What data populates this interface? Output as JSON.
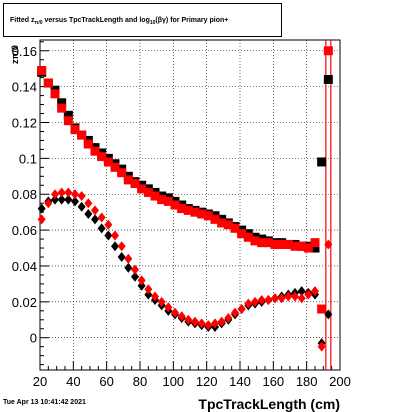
{
  "title": {
    "pre": "Fitted  z",
    "sub1": "π/0",
    "mid": " versus TpcTrackLength and log",
    "sub2": "10",
    "post": "(βγ) for Primary pion+"
  },
  "footer_timestamp": "Tue Apr 13 10:41:42 2021",
  "chart_data": {
    "type": "scatter",
    "xlabel": "TpcTrackLength (cm)",
    "ylabel": "zπ/0",
    "xlim": [
      20,
      200
    ],
    "ylim": [
      -0.018,
      0.166
    ],
    "x_ticks": [
      20,
      40,
      60,
      80,
      100,
      120,
      140,
      160,
      180,
      200
    ],
    "x_tick_labels": [
      "20",
      "40",
      "60",
      "80",
      "100",
      "120",
      "140",
      "160",
      "180",
      "200"
    ],
    "y_ticks": [
      0,
      0.02,
      0.04,
      0.06,
      0.08,
      0.1,
      0.12,
      0.14,
      0.16
    ],
    "y_tick_labels": [
      "0",
      "0.02",
      "0.04",
      "0.06",
      "0.08",
      "0.1",
      "0.12",
      "0.14",
      "0.16"
    ],
    "grid": true,
    "colors": {
      "black": "#000000",
      "red": "#ff0000"
    },
    "vertical_lines_x": [
      191.5,
      194.5
    ],
    "series": [
      {
        "marker": "square",
        "color": "#000000",
        "x": [
          21,
          25,
          29,
          33,
          37,
          41,
          45,
          49,
          53,
          57,
          61,
          65,
          69,
          73,
          77,
          81,
          85,
          89,
          93,
          97,
          101,
          105,
          109,
          113,
          117,
          121,
          125,
          129,
          133,
          137,
          141,
          145,
          149,
          153,
          157,
          161,
          165,
          169,
          173,
          177,
          181,
          185,
          189,
          193
        ],
        "y": [
          0.148,
          0.142,
          0.138,
          0.131,
          0.124,
          0.117,
          0.113,
          0.11,
          0.106,
          0.103,
          0.1,
          0.097,
          0.094,
          0.09,
          0.087,
          0.085,
          0.083,
          0.081,
          0.079,
          0.078,
          0.076,
          0.074,
          0.072,
          0.071,
          0.07,
          0.069,
          0.068,
          0.066,
          0.064,
          0.062,
          0.06,
          0.058,
          0.056,
          0.055,
          0.054,
          0.053,
          0.053,
          0.052,
          0.052,
          0.051,
          0.051,
          0.05,
          0.098,
          0.144
        ]
      },
      {
        "marker": "square",
        "color": "#ff0000",
        "x": [
          21,
          25,
          29,
          33,
          37,
          41,
          45,
          49,
          53,
          57,
          61,
          65,
          69,
          73,
          77,
          81,
          85,
          89,
          93,
          97,
          101,
          105,
          109,
          113,
          117,
          121,
          125,
          129,
          133,
          137,
          141,
          145,
          149,
          153,
          157,
          161,
          165,
          169,
          173,
          177,
          181,
          185,
          189,
          193
        ],
        "y": [
          0.149,
          0.142,
          0.136,
          0.128,
          0.121,
          0.116,
          0.113,
          0.108,
          0.104,
          0.101,
          0.098,
          0.095,
          0.092,
          0.088,
          0.086,
          0.083,
          0.081,
          0.079,
          0.077,
          0.076,
          0.074,
          0.072,
          0.071,
          0.07,
          0.069,
          0.068,
          0.066,
          0.064,
          0.063,
          0.061,
          0.058,
          0.056,
          0.054,
          0.053,
          0.053,
          0.052,
          0.052,
          0.052,
          0.051,
          0.051,
          0.05,
          0.053,
          0.016,
          0.16
        ]
      },
      {
        "marker": "diamond",
        "color": "#000000",
        "x": [
          21,
          25,
          29,
          33,
          37,
          41,
          45,
          49,
          53,
          57,
          61,
          65,
          69,
          73,
          77,
          81,
          85,
          89,
          93,
          97,
          101,
          105,
          109,
          113,
          117,
          121,
          125,
          129,
          133,
          137,
          141,
          145,
          149,
          153,
          157,
          161,
          165,
          169,
          173,
          177,
          181,
          185,
          189,
          193
        ],
        "y": [
          0.072,
          0.076,
          0.077,
          0.077,
          0.077,
          0.076,
          0.073,
          0.069,
          0.066,
          0.061,
          0.057,
          0.051,
          0.045,
          0.039,
          0.034,
          0.029,
          0.024,
          0.021,
          0.018,
          0.015,
          0.013,
          0.011,
          0.009,
          0.008,
          0.007,
          0.006,
          0.006,
          0.008,
          0.01,
          0.013,
          0.016,
          0.018,
          0.019,
          0.02,
          0.021,
          0.022,
          0.023,
          0.024,
          0.025,
          0.026,
          0.025,
          0.024,
          -0.003,
          0.013
        ]
      },
      {
        "marker": "diamond",
        "color": "#ff0000",
        "x": [
          21,
          25,
          29,
          33,
          37,
          41,
          45,
          49,
          53,
          57,
          61,
          65,
          69,
          73,
          77,
          81,
          85,
          89,
          93,
          97,
          101,
          105,
          109,
          113,
          117,
          121,
          125,
          129,
          133,
          137,
          141,
          145,
          149,
          153,
          157,
          161,
          165,
          169,
          173,
          177,
          181,
          185,
          189,
          193
        ],
        "y": [
          0.066,
          0.075,
          0.08,
          0.081,
          0.081,
          0.08,
          0.079,
          0.075,
          0.071,
          0.067,
          0.063,
          0.057,
          0.051,
          0.044,
          0.038,
          0.032,
          0.027,
          0.023,
          0.02,
          0.017,
          0.014,
          0.012,
          0.01,
          0.009,
          0.008,
          0.007,
          0.008,
          0.009,
          0.011,
          0.014,
          0.016,
          0.019,
          0.02,
          0.021,
          0.021,
          0.022,
          0.022,
          0.023,
          0.023,
          0.022,
          0.024,
          0.026,
          -0.005,
          0.052
        ]
      }
    ]
  }
}
